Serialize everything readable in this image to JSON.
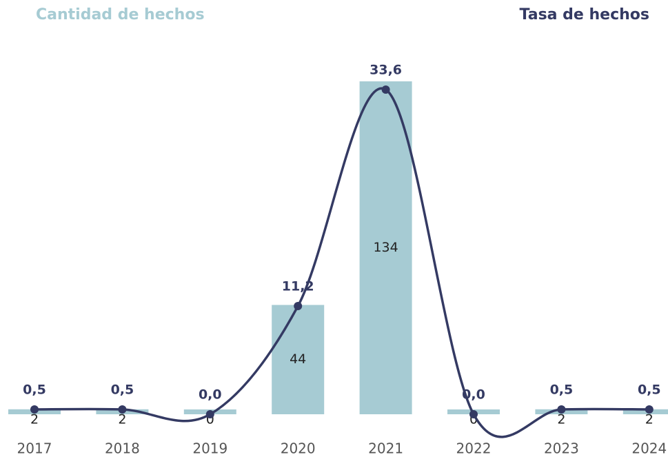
{
  "chart_data": {
    "type": "bar-line",
    "categories": [
      "2017",
      "2018",
      "2019",
      "2020",
      "2021",
      "2022",
      "2023",
      "2024"
    ],
    "series": [
      {
        "name": "Cantidad de hechos",
        "color": "#a6cbd3",
        "type": "bar",
        "values": [
          2,
          2,
          0,
          44,
          134,
          0,
          2,
          2
        ]
      },
      {
        "name": "Tasa de hechos",
        "color": "#343a63",
        "type": "line",
        "axis": "y2",
        "values": [
          0.5,
          0.5,
          0,
          11.2,
          33.6,
          0,
          0.5,
          0.5
        ],
        "value_labels": [
          "0,5",
          "0,5",
          "0,0",
          "11,2",
          "33,6",
          "0,0",
          "0,5",
          "0,5"
        ]
      }
    ],
    "ylim": [
      0,
      140
    ],
    "y2lim": [
      0,
      36
    ]
  }
}
